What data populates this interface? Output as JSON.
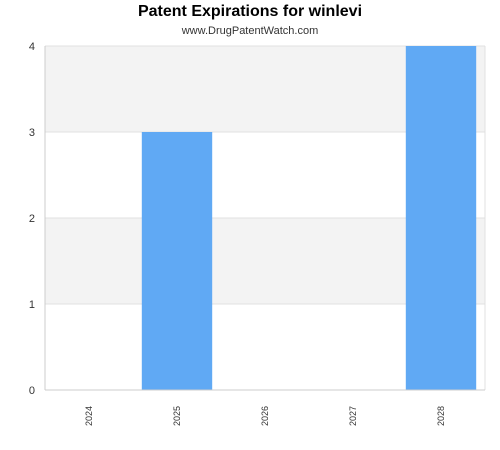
{
  "title": "Patent Expirations for winlevi",
  "subtitle": "www.DrugPatentWatch.com",
  "colors": {
    "bar": "#60a9f4",
    "band": "#f3f3f3",
    "grid": "#e0e0e0",
    "axis": "#cccccc"
  },
  "chart_data": {
    "type": "bar",
    "title": "Patent Expirations for winlevi",
    "subtitle": "www.DrugPatentWatch.com",
    "categories": [
      "2024",
      "2025",
      "2026",
      "2027",
      "2028"
    ],
    "values": [
      0,
      3,
      0,
      0,
      4
    ],
    "ylim": [
      0,
      4
    ],
    "yticks": [
      0,
      1,
      2,
      3,
      4
    ],
    "grid": true,
    "legend": "none"
  }
}
